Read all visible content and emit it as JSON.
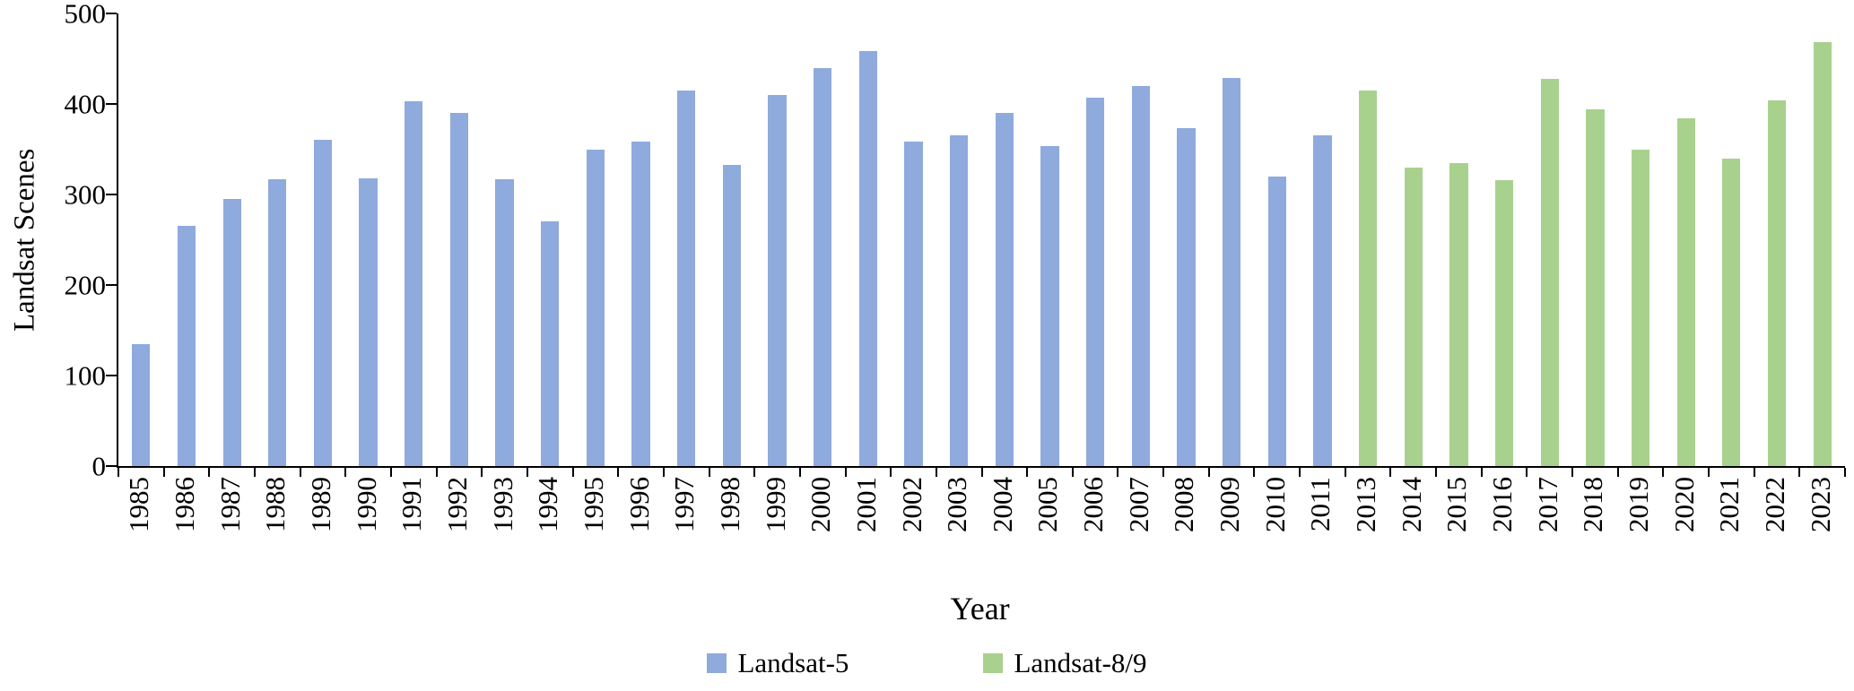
{
  "chart_data": {
    "type": "bar",
    "title": "",
    "xlabel": "Year",
    "ylabel": "Landsat Scenes",
    "ylim": [
      0,
      500
    ],
    "yticks": [
      0,
      100,
      200,
      300,
      400,
      500
    ],
    "grid": false,
    "legend_position": "bottom",
    "categories": [
      "1985",
      "1986",
      "1987",
      "1988",
      "1989",
      "1990",
      "1991",
      "1992",
      "1993",
      "1994",
      "1995",
      "1996",
      "1997",
      "1998",
      "1999",
      "2000",
      "2001",
      "2002",
      "2003",
      "2004",
      "2005",
      "2006",
      "2007",
      "2008",
      "2009",
      "2010",
      "2011",
      "2013",
      "2014",
      "2015",
      "2016",
      "2017",
      "2018",
      "2019",
      "2020",
      "2021",
      "2022",
      "2023"
    ],
    "series": [
      {
        "name": "Landsat-5",
        "color": "#8FAADC",
        "values": [
          135,
          265,
          295,
          317,
          360,
          318,
          403,
          390,
          317,
          270,
          350,
          358,
          415,
          333,
          410,
          440,
          458,
          358,
          365,
          390,
          353,
          407,
          420,
          373,
          429,
          320,
          365,
          null,
          null,
          null,
          null,
          null,
          null,
          null,
          null,
          null,
          null,
          null
        ]
      },
      {
        "name": "Landsat-8/9",
        "color": "#A9D18E",
        "values": [
          null,
          null,
          null,
          null,
          null,
          null,
          null,
          null,
          null,
          null,
          null,
          null,
          null,
          null,
          null,
          null,
          null,
          null,
          null,
          null,
          null,
          null,
          null,
          null,
          null,
          null,
          null,
          415,
          330,
          335,
          316,
          428,
          394,
          350,
          384,
          340,
          404,
          468
        ]
      }
    ]
  }
}
